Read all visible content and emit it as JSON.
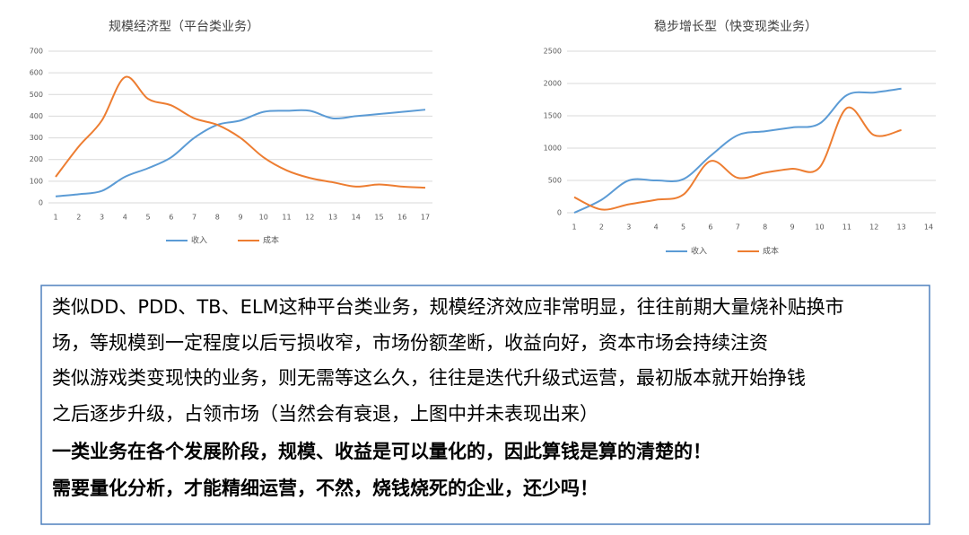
{
  "chart_data": [
    {
      "type": "line",
      "title": "规模经济型（平台类业务）",
      "categories": [
        "1",
        "2",
        "3",
        "4",
        "5",
        "6",
        "7",
        "8",
        "9",
        "10",
        "11",
        "12",
        "13",
        "14",
        "15",
        "16",
        "17"
      ],
      "series": [
        {
          "name": "收入",
          "color": "#5b9bd5",
          "values": [
            30,
            40,
            55,
            120,
            160,
            210,
            300,
            360,
            380,
            420,
            425,
            425,
            390,
            400,
            410,
            420,
            430
          ]
        },
        {
          "name": "成本",
          "color": "#ed7d31",
          "values": [
            120,
            260,
            380,
            580,
            480,
            450,
            390,
            360,
            300,
            210,
            150,
            115,
            95,
            75,
            85,
            75,
            70
          ]
        }
      ],
      "ylim": [
        0,
        700
      ],
      "yticks": [
        0,
        100,
        200,
        300,
        400,
        500,
        600,
        700
      ],
      "grid": true,
      "legend": "bottom"
    },
    {
      "type": "line",
      "title": "稳步增长型（快变现类业务）",
      "categories": [
        "1",
        "2",
        "3",
        "4",
        "5",
        "6",
        "7",
        "8",
        "9",
        "10",
        "11",
        "12",
        "13",
        "14"
      ],
      "series": [
        {
          "name": "收入",
          "color": "#5b9bd5",
          "values": [
            0,
            200,
            500,
            500,
            520,
            880,
            1200,
            1260,
            1320,
            1380,
            1820,
            1860,
            1920,
            null
          ]
        },
        {
          "name": "成本",
          "color": "#ed7d31",
          "values": [
            240,
            50,
            130,
            200,
            280,
            800,
            540,
            620,
            680,
            700,
            1620,
            1200,
            1280,
            null
          ]
        }
      ],
      "ylim": [
        0,
        2500
      ],
      "yticks": [
        0,
        500,
        1000,
        1500,
        2000,
        2500
      ],
      "grid": true,
      "legend": "bottom"
    }
  ],
  "text_box": {
    "lines": [
      {
        "text": "类似DD、PDD、TB、ELM这种平台类业务，规模经济效应非常明显，往往前期大量烧补贴换市",
        "bold": false
      },
      {
        "text": "场，等规模到一定程度以后亏损收窄，市场份额垄断，收益向好，资本市场会持续注资",
        "bold": false
      },
      {
        "text": "类似游戏类变现快的业务，则无需等这么久，往往是迭代升级式运营，最初版本就开始挣钱",
        "bold": false
      },
      {
        "text": "之后逐步升级，占领市场（当然会有衰退，上图中并未表现出来）",
        "bold": false
      },
      {
        "text": "一类业务在各个发展阶段，规模、收益是可以量化的，因此算钱是算的清楚的！",
        "bold": true
      },
      {
        "text": "需要量化分析，才能精细运营，不然，烧钱烧死的企业，还少吗！",
        "bold": true
      }
    ]
  }
}
